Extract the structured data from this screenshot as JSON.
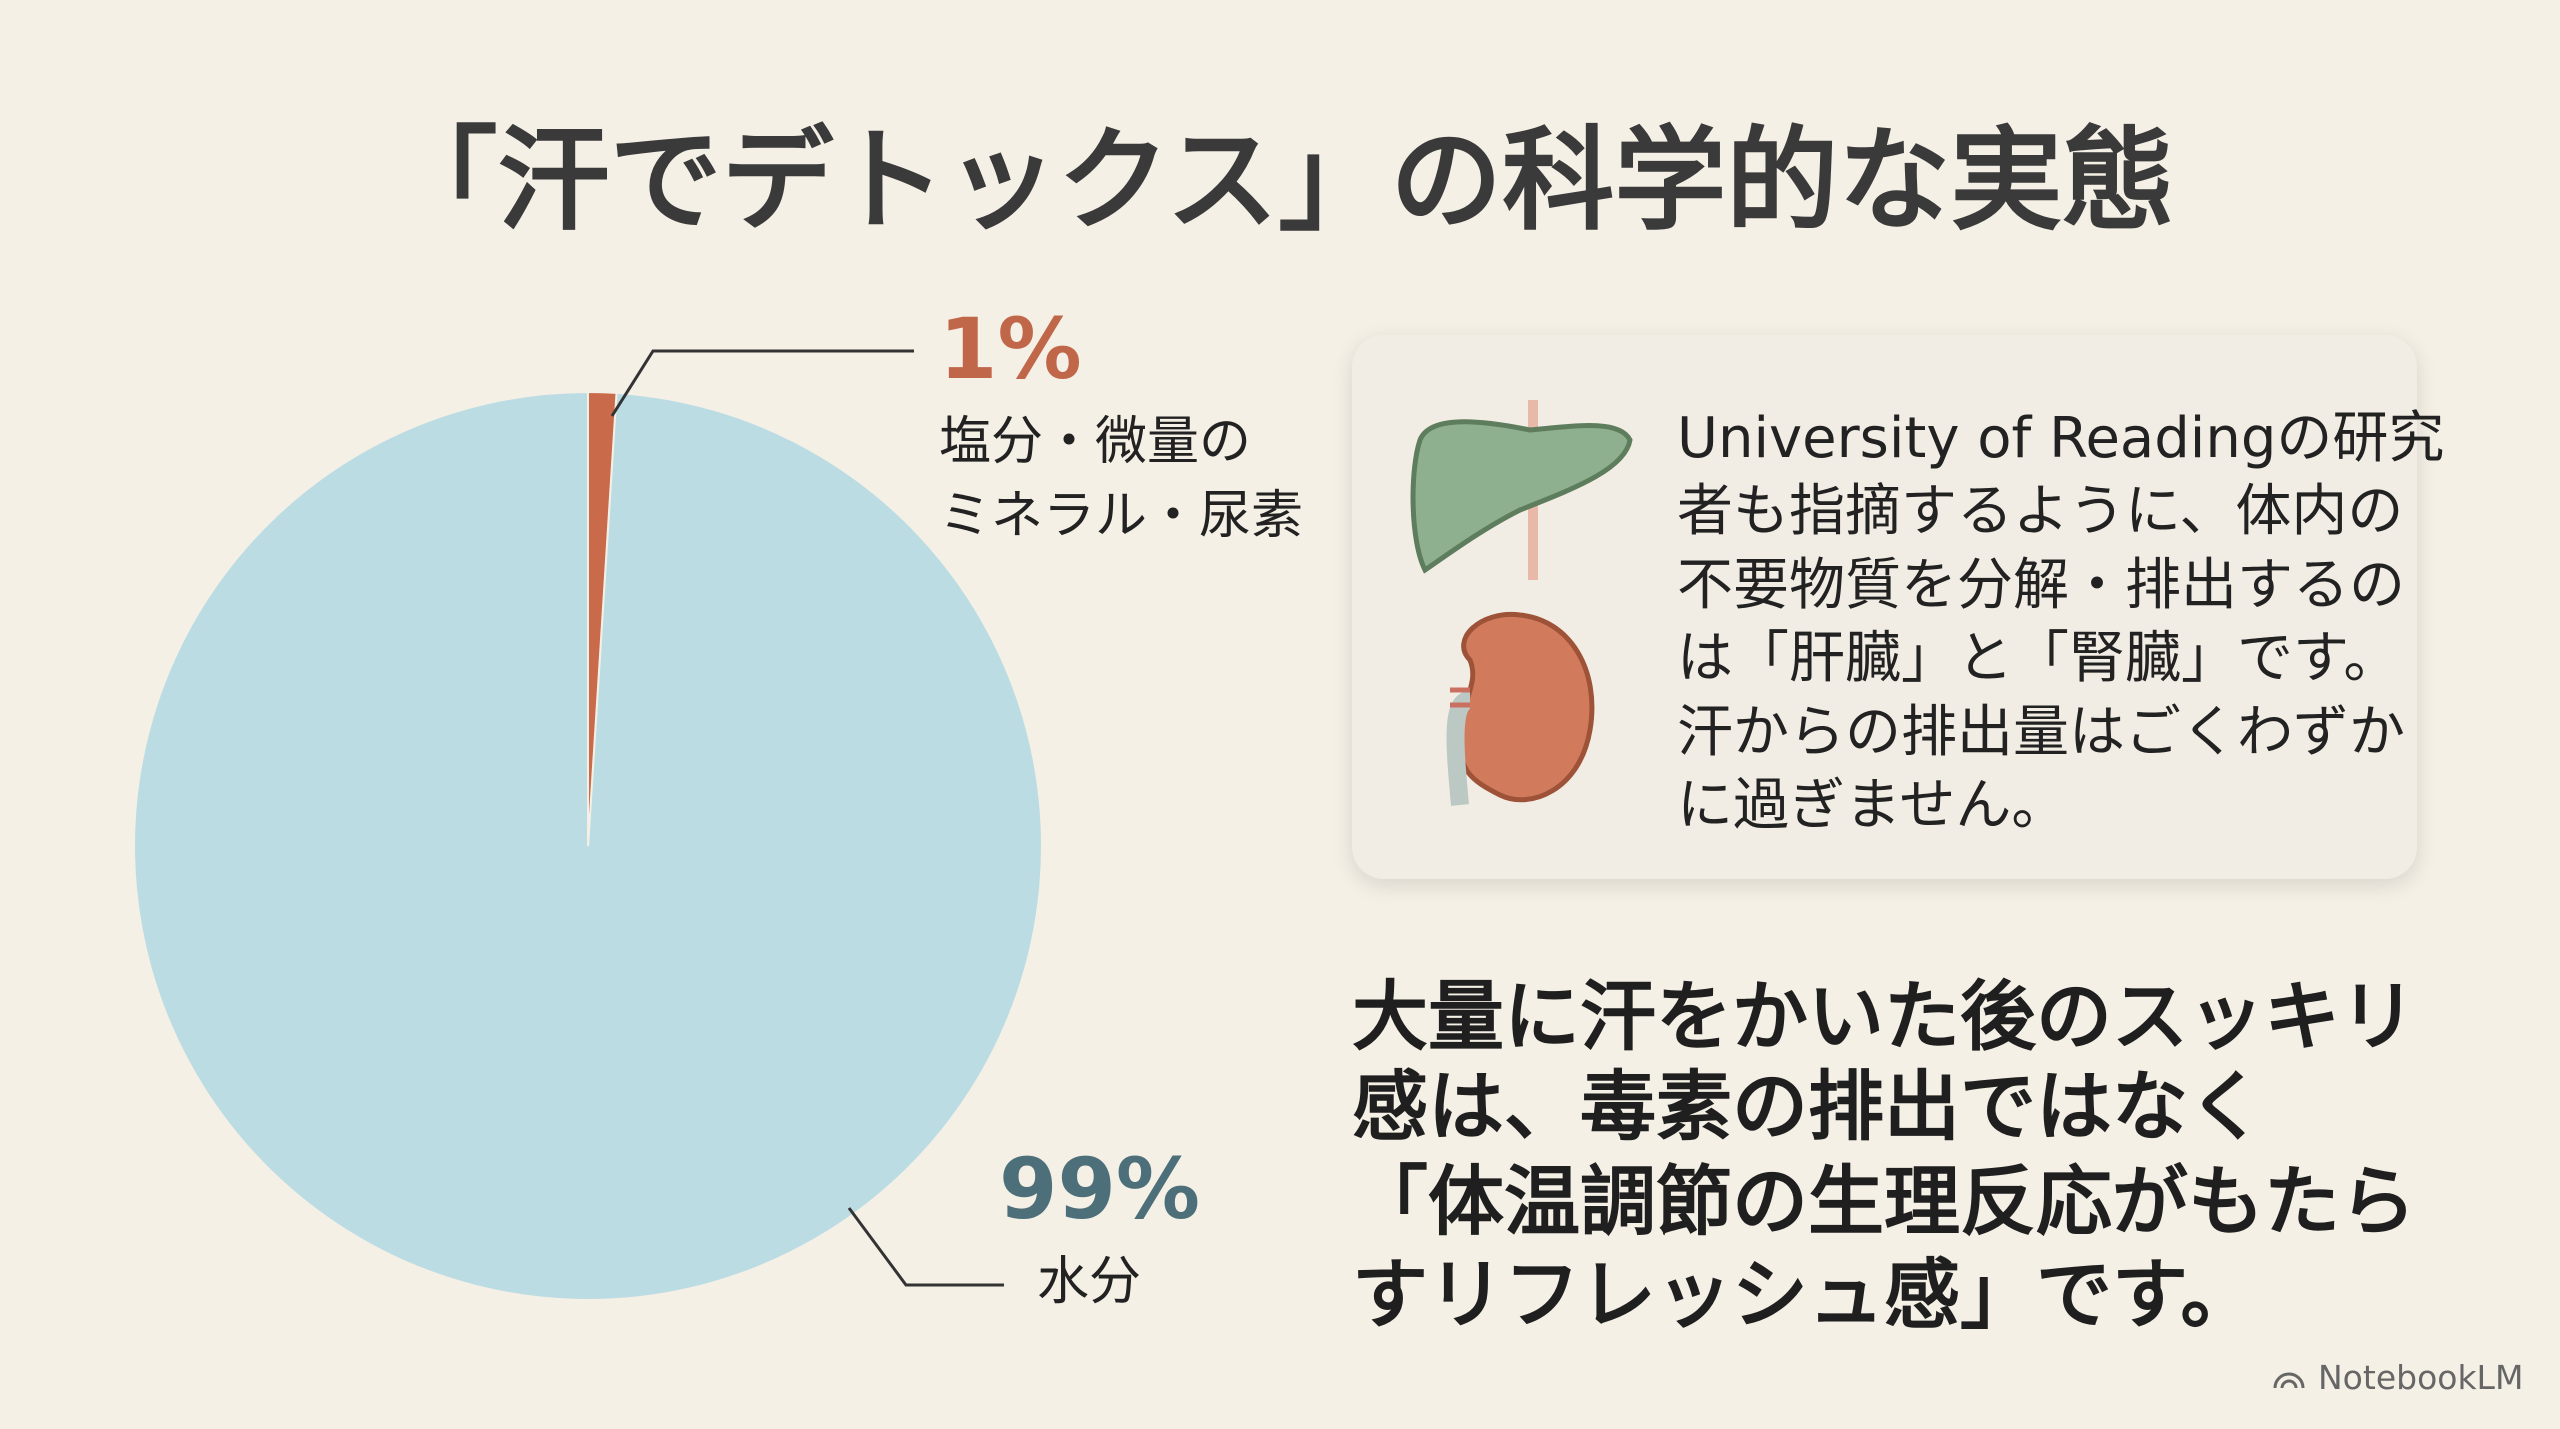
{
  "chart_data": {
    "type": "pie",
    "title": "「汗でデトックス」の科学的な実態",
    "categories": [
      "塩分・微量の\nミネラル・尿素",
      "水分"
    ],
    "values": [
      1,
      99
    ],
    "value_labels": [
      "1%",
      "99%"
    ],
    "colors": [
      "#c96a4a",
      "#bcdce4"
    ]
  },
  "panel": {
    "lines": [
      "University of Readingの研究",
      "者も指摘するように、体内の",
      "不要物質を分解・排出するの",
      "は「肝臓」と「腎臓」です。",
      "汗からの排出量はごくわずか",
      "に過ぎません。"
    ]
  },
  "summary": {
    "lines": [
      "大量に汗をかいた後のスッキリ",
      "感は、毒素の排出ではなく",
      "「体温調節の生理反応がもたら",
      "すリフレッシュ感」です。"
    ]
  },
  "footer": "NotebookLM"
}
